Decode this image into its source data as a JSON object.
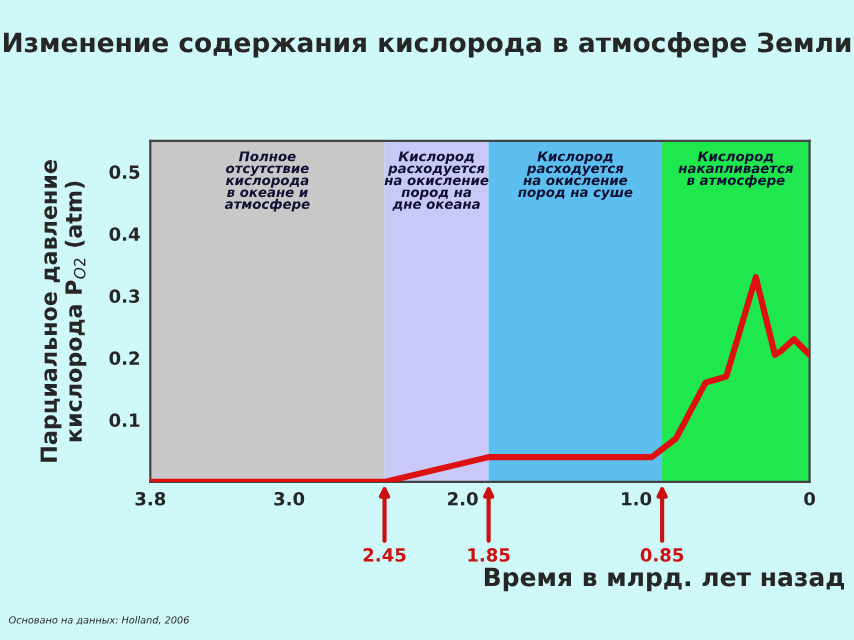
{
  "chart_data": {
    "type": "line",
    "title": "Изменение содержания кислорода в атмосфере Земли",
    "xlabel": "Время в млрд. лет назад",
    "ylabel": "Парциальное давление\nкислорода P$_{O2}$ (atm)",
    "series": [
      {
        "color": "#dd1111",
        "x": [
          3.8,
          2.45,
          1.85,
          0.91,
          0.77,
          0.6,
          0.48,
          0.31,
          0.2,
          0.17,
          0.09,
          0
        ],
        "values": [
          0,
          0,
          0.04,
          0.04,
          0.07,
          0.16,
          0.17,
          0.33,
          0.205,
          0.21,
          0.23,
          0.205
        ]
      }
    ],
    "xlim": [
      3.8,
      0
    ],
    "xticks": [
      3.8,
      {
        "value": 3.0,
        "label": "3.0"
      },
      {
        "value": 2.0,
        "label": "2.0"
      },
      {
        "value": 1.0,
        "label": "1.0"
      },
      0
    ],
    "ylim": [
      0,
      0.55
    ],
    "yticks": [
      0.1,
      0.2,
      0.3,
      0.4,
      0.5
    ],
    "bands": [
      {
        "axis": "x",
        "from": 3.8,
        "to": 2.45,
        "color": "#c8c8c8",
        "label": "Полное\nотсутствие\nкислорода\nв океане и\nатмосфере"
      },
      {
        "axis": "x",
        "from": 2.45,
        "to": 1.85,
        "color": "#c9c9f7",
        "label": "Кислород\nрасходуется\nна окисление\nпород на\nдне океана"
      },
      {
        "axis": "x",
        "from": 1.85,
        "to": 0.85,
        "color": "#5cbff0",
        "label": "Кислород\nрасходуется\nна окисление\nпород на суше"
      },
      {
        "axis": "x",
        "from": 0.85,
        "to": 0,
        "color": "#1ee84e",
        "label": "Кислород\nнакапливается\nв атмосфере"
      }
    ],
    "annotations": [
      {
        "text": "2.45",
        "x": 2.45,
        "y": 0
      },
      {
        "text": "1.85",
        "x": 1.85,
        "y": 0
      },
      {
        "text": "0.85",
        "x": 0.85,
        "y": 0
      },
      "Основано на данных: Holland, 2006"
    ],
    "grid": false,
    "legend": false
  }
}
